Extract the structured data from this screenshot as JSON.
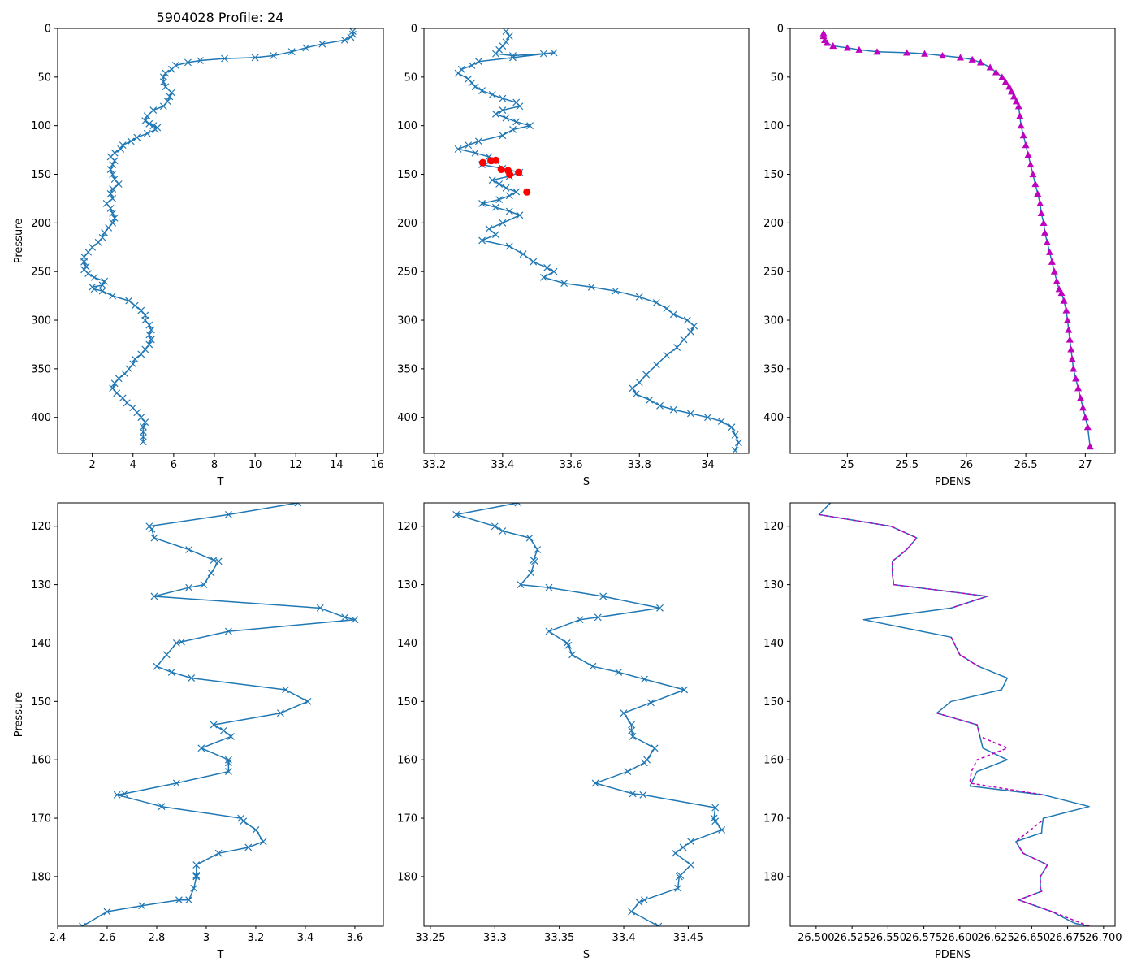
{
  "title": "5904028 Profile: 24",
  "colors": {
    "line": "#1f77b4",
    "flag": "#ff0000",
    "density": "#bf00bf",
    "dashed": "#bf00bf"
  },
  "chart_data": [
    {
      "id": "T_full",
      "type": "line",
      "xlabel": "T",
      "ylabel": "Pressure",
      "title": "5904028 Profile: 24",
      "xlim": [
        0.3,
        16.3
      ],
      "ylim": [
        437,
        0
      ],
      "inverted_y": true,
      "marker": "x",
      "xticks": [
        2,
        4,
        6,
        8,
        10,
        12,
        14,
        16
      ],
      "yticks": [
        0,
        50,
        100,
        150,
        200,
        250,
        300,
        350,
        400
      ],
      "x": [
        14.8,
        14.8,
        14.7,
        14.4,
        13.3,
        12.5,
        11.8,
        10.9,
        10.0,
        8.5,
        7.3,
        6.7,
        6.1,
        5.9,
        5.6,
        5.5,
        5.5,
        5.6,
        5.9,
        5.8,
        5.7,
        5.5,
        5.0,
        4.7,
        4.6,
        4.8,
        5.0,
        5.2,
        5.1,
        4.7,
        4.2,
        3.9,
        3.5,
        3.4,
        3.1,
        2.9,
        3.1,
        3.0,
        2.9,
        3.0,
        3.1,
        3.3,
        3.0,
        2.9,
        3.0,
        2.7,
        2.9,
        3.0,
        3.1,
        3.0,
        2.8,
        2.6,
        2.5,
        2.3,
        2.0,
        1.8,
        1.6,
        1.6,
        1.7,
        1.6,
        1.8,
        2.1,
        2.6,
        2.5,
        2.0,
        2.1,
        2.5,
        3.0,
        3.8,
        4.1,
        4.4,
        4.6,
        4.6,
        4.8,
        4.9,
        4.8,
        4.9,
        4.8,
        4.6,
        4.4,
        4.1,
        4.0,
        3.8,
        3.6,
        3.3,
        3.1,
        3.0,
        3.2,
        3.5,
        3.7,
        4.0,
        4.2,
        4.4,
        4.6,
        4.5,
        4.5,
        4.5,
        4.5
      ],
      "y": [
        3,
        6,
        9,
        12,
        16,
        20,
        24,
        28,
        30,
        31,
        33,
        35,
        38,
        42,
        46,
        50,
        55,
        60,
        66,
        70,
        75,
        80,
        84,
        90,
        95,
        98,
        100,
        102,
        104,
        108,
        112,
        116,
        120,
        124,
        128,
        132,
        136,
        140,
        145,
        150,
        155,
        160,
        165,
        170,
        175,
        180,
        185,
        190,
        195,
        200,
        205,
        210,
        215,
        220,
        225,
        230,
        235,
        240,
        245,
        248,
        252,
        256,
        260,
        264,
        266,
        268,
        270,
        275,
        280,
        285,
        290,
        295,
        300,
        305,
        310,
        315,
        320,
        325,
        330,
        335,
        340,
        345,
        350,
        355,
        360,
        365,
        370,
        375,
        380,
        385,
        390,
        395,
        400,
        405,
        410,
        415,
        420,
        425
      ]
    },
    {
      "id": "S_full",
      "type": "line",
      "xlabel": "S",
      "ylabel": "",
      "xlim": [
        33.17,
        34.12
      ],
      "ylim": [
        437,
        0
      ],
      "inverted_y": true,
      "marker": "x",
      "xticks": [
        33.2,
        33.4,
        33.6,
        33.8,
        34.0
      ],
      "yticks": [
        0,
        50,
        100,
        150,
        200,
        250,
        300,
        350,
        400
      ],
      "x": [
        33.41,
        33.42,
        33.41,
        33.4,
        33.39,
        33.38,
        33.43,
        33.52,
        33.55,
        33.43,
        33.33,
        33.31,
        33.28,
        33.27,
        33.3,
        33.31,
        33.32,
        33.34,
        33.37,
        33.4,
        33.44,
        33.45,
        33.4,
        33.38,
        33.41,
        33.44,
        33.48,
        33.43,
        33.4,
        33.33,
        33.3,
        33.27,
        33.32,
        33.36,
        33.38,
        33.34,
        33.4,
        33.45,
        33.42,
        33.37,
        33.39,
        33.41,
        33.44,
        33.42,
        33.39,
        33.34,
        33.38,
        33.42,
        33.45,
        33.4,
        33.36,
        33.38,
        33.34,
        33.42,
        33.46,
        33.49,
        33.53,
        33.55,
        33.52,
        33.58,
        33.66,
        33.73,
        33.8,
        33.85,
        33.88,
        33.9,
        33.94,
        33.96,
        33.95,
        33.93,
        33.91,
        33.88,
        33.85,
        33.82,
        33.8,
        33.78,
        33.79,
        33.83,
        33.86,
        33.9,
        33.95,
        34.0,
        34.04,
        34.07,
        34.08,
        34.09,
        34.08
      ],
      "y": [
        3,
        8,
        14,
        18,
        22,
        26,
        28,
        26,
        25,
        30,
        34,
        38,
        42,
        46,
        52,
        56,
        60,
        64,
        68,
        72,
        76,
        80,
        84,
        88,
        92,
        96,
        100,
        104,
        110,
        116,
        120,
        124,
        128,
        132,
        136,
        140,
        144,
        148,
        152,
        156,
        160,
        164,
        168,
        172,
        176,
        180,
        184,
        188,
        192,
        200,
        206,
        212,
        218,
        224,
        232,
        240,
        246,
        250,
        256,
        262,
        266,
        270,
        276,
        282,
        288,
        294,
        300,
        306,
        312,
        320,
        328,
        336,
        346,
        356,
        364,
        370,
        376,
        382,
        388,
        392,
        396,
        400,
        404,
        410,
        418,
        426,
        434
      ],
      "flagged_points": [
        {
          "s": 33.342,
          "p": 138
        },
        {
          "s": 33.366,
          "p": 136
        },
        {
          "s": 33.38,
          "p": 135.6
        },
        {
          "s": 33.396,
          "p": 145
        },
        {
          "s": 33.416,
          "p": 146.2
        },
        {
          "s": 33.447,
          "p": 148
        },
        {
          "s": 33.421,
          "p": 150.2
        },
        {
          "s": 33.471,
          "p": 168.2
        }
      ]
    },
    {
      "id": "PDENS_full",
      "type": "line",
      "xlabel": "PDENS",
      "ylabel": "",
      "xlim": [
        24.52,
        27.25
      ],
      "ylim": [
        437,
        0
      ],
      "inverted_y": true,
      "marker": "triangle",
      "xticks": [
        25.0,
        25.5,
        26.0,
        26.5,
        27.0
      ],
      "yticks": [
        0,
        50,
        100,
        150,
        200,
        250,
        300,
        350,
        400
      ],
      "x": [
        24.8,
        24.8,
        24.81,
        24.83,
        24.88,
        25.0,
        25.1,
        25.25,
        25.5,
        25.65,
        25.8,
        25.95,
        26.05,
        26.12,
        26.2,
        26.25,
        26.3,
        26.33,
        26.36,
        26.38,
        26.4,
        26.42,
        26.44,
        26.45,
        26.46,
        26.48,
        26.5,
        26.52,
        26.54,
        26.56,
        26.58,
        26.6,
        26.62,
        26.63,
        26.65,
        26.66,
        26.68,
        26.7,
        26.72,
        26.74,
        26.76,
        26.78,
        26.8,
        26.82,
        26.84,
        26.85,
        26.86,
        26.87,
        26.88,
        26.89,
        26.9,
        26.92,
        26.94,
        26.96,
        26.98,
        27.0,
        27.02,
        27.04
      ],
      "y": [
        5,
        8,
        12,
        15,
        18,
        20,
        22,
        24,
        25,
        26,
        28,
        30,
        32,
        35,
        40,
        45,
        50,
        55,
        60,
        65,
        70,
        75,
        80,
        90,
        100,
        110,
        120,
        130,
        140,
        150,
        160,
        170,
        180,
        190,
        200,
        210,
        220,
        230,
        240,
        250,
        260,
        268,
        272,
        280,
        290,
        300,
        310,
        320,
        330,
        340,
        350,
        360,
        370,
        380,
        390,
        400,
        410,
        430
      ]
    },
    {
      "id": "T_zoom",
      "type": "line",
      "xlabel": "T",
      "ylabel": "Pressure",
      "xlim": [
        2.4,
        3.715
      ],
      "ylim": [
        188.5,
        116
      ],
      "inverted_y": true,
      "marker": "x",
      "xticks": [
        2.4,
        2.6,
        2.8,
        3.0,
        3.2,
        3.4,
        3.6
      ],
      "yticks": [
        120,
        130,
        140,
        150,
        160,
        170,
        180
      ],
      "x": [
        3.37,
        3.09,
        2.77,
        2.78,
        2.79,
        2.93,
        3.03,
        3.05,
        3.02,
        2.99,
        2.93,
        2.79,
        3.46,
        3.56,
        3.6,
        3.09,
        2.9,
        2.88,
        2.84,
        2.8,
        2.86,
        2.94,
        3.32,
        3.41,
        3.3,
        3.03,
        3.07,
        3.1,
        2.98,
        3.09,
        3.09,
        3.09,
        2.88,
        2.67,
        2.64,
        2.82,
        3.14,
        3.15,
        3.2,
        3.23,
        3.17,
        3.05,
        2.96,
        2.96,
        2.96,
        2.95,
        2.93,
        2.89,
        2.74,
        2.6,
        2.5
      ],
      "y": [
        116,
        118,
        120,
        120.5,
        122,
        124,
        125.8,
        126,
        128,
        130,
        130.5,
        132,
        134,
        135.6,
        136,
        138,
        139.8,
        140,
        142,
        144,
        145,
        146,
        148,
        150,
        152,
        154,
        155,
        156,
        158,
        160,
        160.5,
        162,
        164,
        165.8,
        166,
        168,
        170,
        170.5,
        172,
        174,
        175,
        176,
        178,
        179.8,
        180,
        182,
        184,
        184,
        185,
        186,
        188.5
      ]
    },
    {
      "id": "S_zoom",
      "type": "line",
      "xlabel": "S",
      "ylabel": "",
      "xlim": [
        33.245,
        33.497
      ],
      "ylim": [
        188.5,
        116
      ],
      "inverted_y": true,
      "marker": "x",
      "xticks": [
        33.25,
        33.3,
        33.35,
        33.4,
        33.45
      ],
      "yticks": [
        120,
        130,
        140,
        150,
        160,
        170,
        180
      ],
      "x": [
        33.318,
        33.27,
        33.3,
        33.306,
        33.327,
        33.333,
        33.33,
        33.331,
        33.328,
        33.32,
        33.342,
        33.384,
        33.428,
        33.38,
        33.366,
        33.342,
        33.356,
        33.357,
        33.36,
        33.376,
        33.396,
        33.416,
        33.447,
        33.421,
        33.4,
        33.406,
        33.406,
        33.407,
        33.424,
        33.418,
        33.416,
        33.403,
        33.378,
        33.407,
        33.415,
        33.471,
        33.47,
        33.471,
        33.476,
        33.452,
        33.446,
        33.44,
        33.452,
        33.444,
        33.443,
        33.442,
        33.416,
        33.412,
        33.406,
        33.427
      ],
      "y": [
        116,
        118,
        120,
        120.8,
        122,
        124,
        125.8,
        126,
        128,
        130,
        130.5,
        132,
        134,
        135.6,
        136,
        138,
        140,
        140.4,
        142,
        144,
        145,
        146.2,
        148,
        150.2,
        152,
        154,
        155,
        156,
        158,
        160,
        160.5,
        162,
        164,
        165.8,
        166,
        168.2,
        170,
        170.5,
        172,
        174,
        175,
        176,
        178,
        179.8,
        180,
        182,
        184,
        184.4,
        186,
        188.5
      ]
    },
    {
      "id": "PDENS_zoom",
      "type": "line",
      "xlabel": "PDENS",
      "ylabel": "",
      "xlim": [
        26.482,
        26.708
      ],
      "ylim": [
        188.5,
        116
      ],
      "inverted_y": true,
      "xticks": [
        26.5,
        26.525,
        26.55,
        26.575,
        26.6,
        26.625,
        26.65,
        26.675,
        26.7
      ],
      "xtick_labels": [
        "26.500",
        "26.525",
        "26.550",
        "26.575",
        "26.600",
        "26.625",
        "26.650",
        "26.675",
        "26.700"
      ],
      "yticks": [
        120,
        130,
        140,
        150,
        160,
        170,
        180
      ],
      "x": [
        26.51,
        26.502,
        26.552,
        26.57,
        26.563,
        26.553,
        26.553,
        26.554,
        26.619,
        26.594,
        26.533,
        26.594,
        26.6,
        26.613,
        26.633,
        26.629,
        26.594,
        26.584,
        26.612,
        26.614,
        26.616,
        26.633,
        26.612,
        26.608,
        26.607,
        26.658,
        26.69,
        26.658,
        26.657,
        26.657,
        26.639,
        26.644,
        26.661,
        26.656,
        26.656,
        26.657,
        26.641,
        26.664,
        26.68,
        26.69
      ],
      "y": [
        116,
        118,
        120,
        122,
        124,
        126,
        128,
        130,
        132,
        134,
        136,
        139,
        142,
        144,
        146,
        148,
        150,
        152,
        154,
        156,
        158,
        160,
        162,
        164,
        164.5,
        166,
        168,
        170,
        172,
        172.5,
        174,
        176,
        178,
        180,
        182,
        182.5,
        184,
        186,
        188,
        188.5
      ],
      "dashed_segments": [
        [
          [
            26.502,
            118
          ],
          [
            26.552,
            120
          ],
          [
            26.57,
            122
          ],
          [
            26.563,
            124
          ],
          [
            26.553,
            126
          ],
          [
            26.553,
            128
          ],
          [
            26.554,
            130
          ],
          [
            26.619,
            132
          ],
          [
            26.594,
            134
          ]
        ],
        [
          [
            26.594,
            139
          ],
          [
            26.6,
            142
          ],
          [
            26.613,
            144
          ]
        ],
        [
          [
            26.584,
            152
          ],
          [
            26.612,
            154
          ],
          [
            26.614,
            156
          ],
          [
            26.633,
            158
          ],
          [
            26.612,
            160
          ],
          [
            26.608,
            162
          ],
          [
            26.607,
            164
          ],
          [
            26.658,
            166
          ]
        ],
        [
          [
            26.657,
            170.5
          ],
          [
            26.639,
            174
          ],
          [
            26.644,
            176
          ],
          [
            26.661,
            178
          ],
          [
            26.656,
            180
          ],
          [
            26.656,
            182
          ],
          [
            26.657,
            182.5
          ],
          [
            26.641,
            184
          ],
          [
            26.664,
            186
          ],
          [
            26.69,
            188.5
          ]
        ]
      ]
    }
  ]
}
